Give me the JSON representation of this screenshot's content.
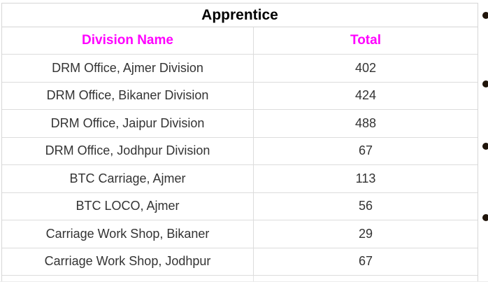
{
  "table": {
    "title": "Apprentice",
    "columns": [
      "Division Name",
      "Total"
    ],
    "rows": [
      {
        "name": "DRM Office, Ajmer Division",
        "total": "402"
      },
      {
        "name": "DRM Office, Bikaner Division",
        "total": "424"
      },
      {
        "name": "DRM Office, Jaipur Division",
        "total": "488"
      },
      {
        "name": "DRM Office, Jodhpur Division",
        "total": "67"
      },
      {
        "name": "BTC Carriage, Ajmer",
        "total": "113"
      },
      {
        "name": "BTC LOCO, Ajmer",
        "total": "56"
      },
      {
        "name": "Carriage Work Shop, Bikaner",
        "total": "29"
      },
      {
        "name": "Carriage Work Shop, Jodhpur",
        "total": "67"
      }
    ]
  },
  "side_bullets": {
    "count": 4
  },
  "colors": {
    "header_text": "#FF00FF",
    "title_text": "#000000",
    "body_text": "#333333",
    "grid_border": "#D6D6D6",
    "bullet": "#20150B",
    "background": "#FFFFFF"
  }
}
